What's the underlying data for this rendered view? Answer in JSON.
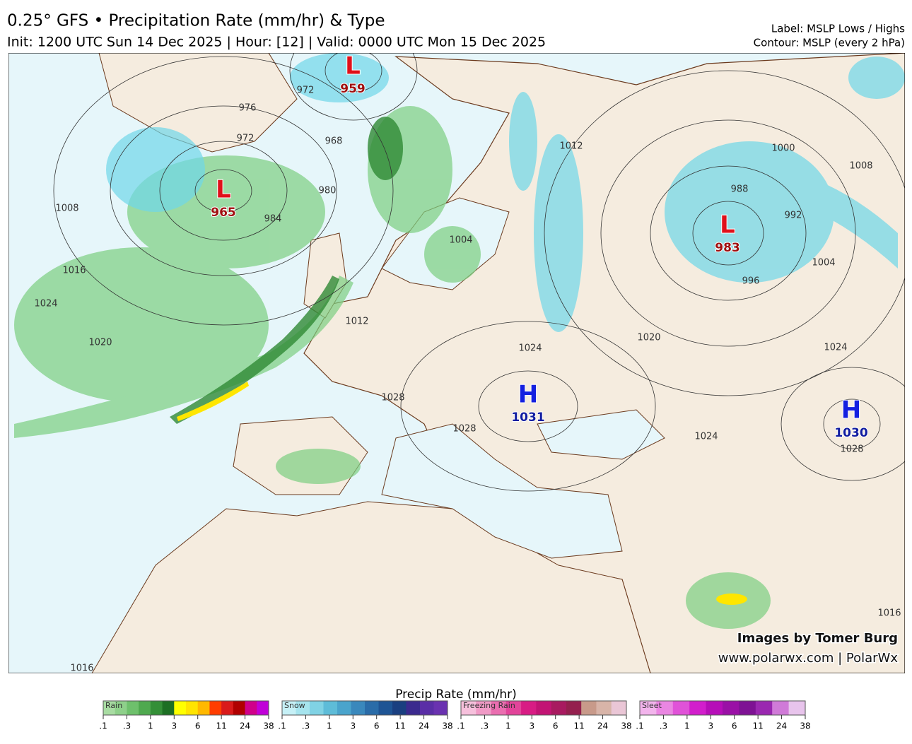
{
  "header": {
    "title": "0.25° GFS • Precipitation Rate (mm/hr) & Type",
    "subtitle": "Init: 1200 UTC Sun 14 Dec 2025 | Hour: [12] | Valid: 0000 UTC Mon 15 Dec 2025",
    "label_note": "Label: MSLP Lows / Highs",
    "contour_note": "Contour: MSLP (every 2 hPa)"
  },
  "pressure_centers": [
    {
      "letter": "L",
      "value": "959"
    },
    {
      "letter": "L",
      "value": "965"
    },
    {
      "letter": "L",
      "value": "983"
    },
    {
      "letter": "H",
      "value": "1031"
    },
    {
      "letter": "H",
      "value": "1030"
    }
  ],
  "contour_labels": [
    "976",
    "972",
    "972",
    "968",
    "980",
    "984",
    "1008",
    "1016",
    "1024",
    "1020",
    "1012",
    "1004",
    "1000",
    "1008",
    "988",
    "992",
    "996",
    "1004",
    "1024",
    "1020",
    "1024",
    "1028",
    "1028",
    "1024",
    "1028",
    "1016",
    "1016",
    "1012"
  ],
  "credits": [
    "Images by Tomer Burg",
    "www.polarwx.com | PolarWx"
  ],
  "legend": {
    "title": "Precip Rate (mm/hr)",
    "ticks": [
      ".1",
      ".3",
      "1",
      "3",
      "6",
      "11",
      "24",
      "38"
    ],
    "groups": [
      {
        "name": "Rain",
        "colors": [
          "#a8dca2",
          "#8ed08a",
          "#6ec06c",
          "#4fa94f",
          "#348f37",
          "#1d6f24",
          "#ffff00",
          "#ffe400",
          "#ffb800",
          "#ff3d00",
          "#d91a1a",
          "#b00000",
          "#d0008a",
          "#c000d8"
        ]
      },
      {
        "name": "Snow",
        "colors": [
          "#c6f0f6",
          "#a6e4ee",
          "#80d2e4",
          "#5ebcd8",
          "#4aa4cc",
          "#3a88bc",
          "#2a6ca8",
          "#1e5494",
          "#1a3f80",
          "#3b2a8e",
          "#5a2ea6",
          "#6a32b0"
        ]
      },
      {
        "name": "Freezing Rain",
        "colors": [
          "#f6c0dc",
          "#f09ac6",
          "#ea6eb0",
          "#e2449a",
          "#d81c84",
          "#c21474",
          "#a81a60",
          "#94204e",
          "#c89a8a",
          "#d8b4a8",
          "#eac6d6"
        ]
      },
      {
        "name": "Sleet",
        "colors": [
          "#f2b4ec",
          "#ea86e2",
          "#e052d8",
          "#d21ecc",
          "#b60eb8",
          "#9a10a6",
          "#7e1294",
          "#9a28b0",
          "#d07ad8",
          "#e8c4ec"
        ]
      }
    ]
  }
}
